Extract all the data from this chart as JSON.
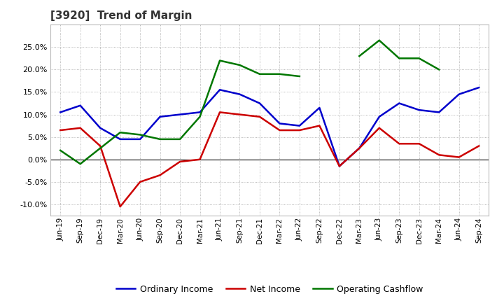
{
  "title": "[3920]  Trend of Margin",
  "x_labels": [
    "Jun-19",
    "Sep-19",
    "Dec-19",
    "Mar-20",
    "Jun-20",
    "Sep-20",
    "Dec-20",
    "Mar-21",
    "Jun-21",
    "Sep-21",
    "Dec-21",
    "Mar-22",
    "Jun-22",
    "Sep-22",
    "Dec-22",
    "Mar-23",
    "Jun-23",
    "Sep-23",
    "Dec-23",
    "Mar-24",
    "Jun-24",
    "Sep-24"
  ],
  "ordinary_income": [
    10.5,
    12.0,
    7.0,
    4.5,
    4.5,
    9.5,
    10.0,
    10.5,
    15.5,
    14.5,
    12.5,
    8.0,
    7.5,
    11.5,
    -1.5,
    2.5,
    9.5,
    12.5,
    11.0,
    10.5,
    14.5,
    16.0
  ],
  "net_income": [
    6.5,
    7.0,
    3.0,
    -10.5,
    -5.0,
    -3.5,
    -0.5,
    0.0,
    10.5,
    10.0,
    9.5,
    6.5,
    6.5,
    7.5,
    -1.5,
    2.5,
    7.0,
    3.5,
    3.5,
    1.0,
    0.5,
    3.0
  ],
  "operating_cashflow": [
    2.0,
    -1.0,
    2.5,
    6.0,
    5.5,
    4.5,
    4.5,
    9.5,
    22.0,
    21.0,
    19.0,
    19.0,
    18.5,
    null,
    null,
    23.0,
    26.5,
    22.5,
    22.5,
    20.0,
    null,
    null
  ],
  "ylim": [
    -12.5,
    30.0
  ],
  "yticks": [
    -10.0,
    -5.0,
    0.0,
    5.0,
    10.0,
    15.0,
    20.0,
    25.0
  ],
  "line_colors": {
    "ordinary_income": "#0000cc",
    "net_income": "#cc0000",
    "operating_cashflow": "#007700"
  },
  "legend_labels": [
    "Ordinary Income",
    "Net Income",
    "Operating Cashflow"
  ],
  "bg_color": "#ffffff",
  "plot_bg_color": "#ffffff",
  "grid_color": "#999999"
}
